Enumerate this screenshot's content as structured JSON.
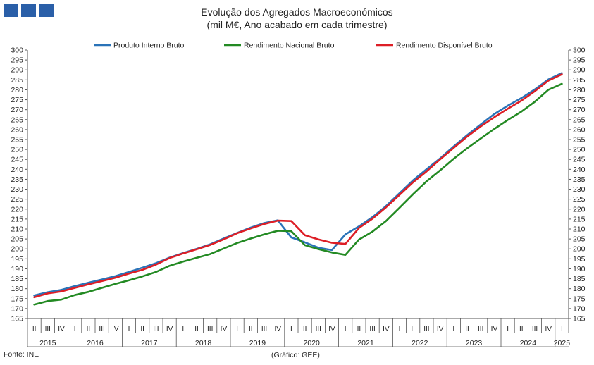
{
  "title": "Evolução dos Agregados Macroeconómicos",
  "subtitle": "(mil M€, Ano acabado em cada trimestre)",
  "source": "Fonte: INE",
  "credit": "(Gráfico: GEE)",
  "colors": {
    "pib": "#2a73b8",
    "rnb": "#238a23",
    "rdb": "#dd1e26",
    "axis": "#555555",
    "logo": "#2a5fa8"
  },
  "chart_data": {
    "type": "line",
    "ylim": [
      165,
      300
    ],
    "ytick_step": 5,
    "grid": false,
    "legend_position": "top",
    "quarter_labels": [
      "II",
      "III",
      "IV",
      "I",
      "II",
      "III",
      "IV",
      "I",
      "II",
      "III",
      "IV",
      "I",
      "II",
      "III",
      "IV",
      "I",
      "II",
      "III",
      "IV",
      "I",
      "II",
      "III",
      "IV",
      "I",
      "II",
      "III",
      "IV",
      "I",
      "II",
      "III",
      "IV",
      "I",
      "II",
      "III",
      "IV",
      "I",
      "II",
      "III",
      "IV",
      "I"
    ],
    "years": [
      {
        "label": "2015",
        "start": 0,
        "end": 2
      },
      {
        "label": "2016",
        "start": 3,
        "end": 6
      },
      {
        "label": "2017",
        "start": 7,
        "end": 10
      },
      {
        "label": "2018",
        "start": 11,
        "end": 14
      },
      {
        "label": "2019",
        "start": 15,
        "end": 18
      },
      {
        "label": "2020",
        "start": 19,
        "end": 22
      },
      {
        "label": "2021",
        "start": 23,
        "end": 26
      },
      {
        "label": "2022",
        "start": 27,
        "end": 30
      },
      {
        "label": "2023",
        "start": 31,
        "end": 34
      },
      {
        "label": "2024",
        "start": 35,
        "end": 38
      },
      {
        "label": "2025",
        "start": 39,
        "end": 39
      }
    ],
    "series": [
      {
        "name": "Produto Interno Bruto",
        "color": "#2a73b8",
        "values": [
          176.6,
          178.2,
          179.4,
          181.3,
          183.0,
          184.6,
          186.3,
          188.4,
          190.6,
          192.8,
          195.6,
          197.9,
          200.0,
          202.3,
          205.2,
          208.0,
          210.7,
          213.0,
          214.4,
          205.8,
          203.3,
          200.6,
          199.4,
          207.3,
          211.3,
          216.0,
          221.5,
          228.0,
          234.5,
          240.1,
          245.5,
          251.5,
          257.2,
          262.6,
          267.8,
          272.0,
          275.8,
          280.2,
          285.2,
          288.4
        ]
      },
      {
        "name": "Rendimento Nacional Bruto",
        "color": "#238a23",
        "values": [
          172.0,
          173.8,
          174.5,
          176.8,
          178.4,
          180.4,
          182.4,
          184.2,
          186.2,
          188.4,
          191.5,
          193.6,
          195.5,
          197.4,
          200.2,
          203.0,
          205.2,
          207.3,
          209.1,
          208.9,
          201.9,
          199.9,
          198.2,
          197.0,
          204.7,
          208.7,
          214.0,
          220.7,
          227.5,
          234.0,
          239.5,
          245.3,
          250.6,
          255.5,
          260.3,
          264.8,
          269.0,
          274.0,
          280.0,
          283.0
        ]
      },
      {
        "name": "Rendimento Disponível Bruto",
        "color": "#dd1e26",
        "values": [
          175.7,
          177.6,
          178.6,
          180.4,
          182.2,
          183.8,
          185.5,
          187.6,
          189.5,
          192.1,
          195.4,
          197.7,
          199.8,
          202.0,
          204.8,
          207.9,
          210.3,
          212.5,
          214.2,
          214.0,
          206.9,
          204.8,
          203.1,
          202.5,
          210.5,
          215.2,
          220.9,
          227.2,
          233.5,
          239.0,
          245.0,
          250.8,
          256.5,
          261.6,
          266.2,
          270.5,
          274.5,
          279.3,
          284.6,
          287.8
        ]
      }
    ]
  }
}
